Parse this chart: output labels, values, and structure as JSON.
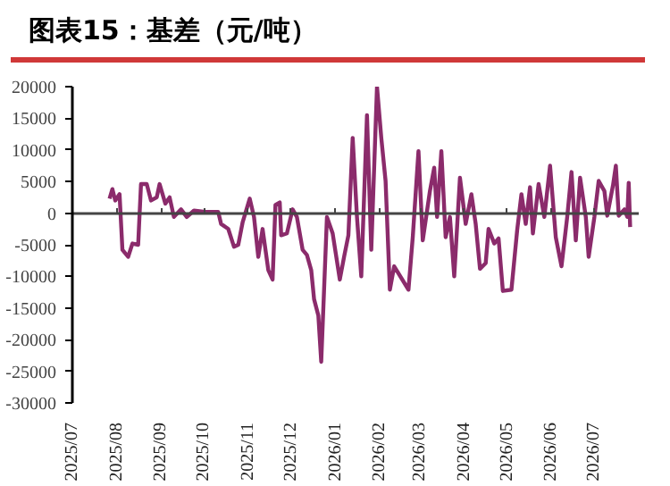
{
  "chart_data": {
    "type": "line",
    "title": "图表15：基差（元/吨）",
    "x": [
      "2025-07-27",
      "2025-07-29",
      "2025-07-31",
      "2025-08-03",
      "2025-08-05",
      "2025-08-09",
      "2025-08-12",
      "2025-08-16",
      "2025-08-18",
      "2025-08-22",
      "2025-08-25",
      "2025-08-29",
      "2025-08-31",
      "2025-09-04",
      "2025-09-07",
      "2025-09-10",
      "2025-09-15",
      "2025-09-19",
      "2025-09-24",
      "2025-10-02",
      "2025-10-11",
      "2025-10-13",
      "2025-10-18",
      "2025-10-22",
      "2025-10-25",
      "2025-10-28",
      "2025-11-02",
      "2025-11-05",
      "2025-11-08",
      "2025-11-11",
      "2025-11-15",
      "2025-11-18",
      "2025-11-20",
      "2025-11-23",
      "2025-11-24",
      "2025-11-28",
      "2025-12-02",
      "2025-12-05",
      "2025-12-09",
      "2025-12-12",
      "2025-12-15",
      "2025-12-17",
      "2025-12-20",
      "2025-12-22",
      "2025-12-26",
      "2025-12-30",
      "2026-01-04",
      "2026-01-07",
      "2026-01-10",
      "2026-01-13",
      "2026-01-16",
      "2026-01-19",
      "2026-01-23",
      "2026-01-26",
      "2026-01-30",
      "2026-02-02",
      "2026-02-05",
      "2026-02-08",
      "2026-02-11",
      "2026-02-21",
      "2026-02-24",
      "2026-02-28",
      "2026-03-03",
      "2026-03-08",
      "2026-03-11",
      "2026-03-13",
      "2026-03-16",
      "2026-03-19",
      "2026-03-22",
      "2026-03-25",
      "2026-03-29",
      "2026-04-02",
      "2026-04-06",
      "2026-04-09",
      "2026-04-12",
      "2026-04-16",
      "2026-04-18",
      "2026-04-22",
      "2026-04-25",
      "2026-04-28",
      "2026-05-04",
      "2026-05-08",
      "2026-05-11",
      "2026-05-14",
      "2026-05-17",
      "2026-05-19",
      "2026-05-23",
      "2026-05-27",
      "2026-05-31",
      "2026-06-04",
      "2026-06-08",
      "2026-06-12",
      "2026-06-15",
      "2026-06-18",
      "2026-06-21",
      "2026-06-25",
      "2026-06-27",
      "2026-07-01",
      "2026-07-04",
      "2026-07-08",
      "2026-07-10",
      "2026-07-14",
      "2026-07-16",
      "2026-07-18",
      "2026-07-22",
      "2026-07-24",
      "2026-07-25",
      "2026-07-26"
    ],
    "series": [
      {
        "color": "#8b2b6b",
        "values": [
          2300,
          3800,
          2000,
          3000,
          -5800,
          -6900,
          -4800,
          -5000,
          4600,
          4600,
          2000,
          2500,
          4600,
          1500,
          2500,
          -600,
          600,
          -600,
          400,
          200,
          200,
          -1700,
          -2500,
          -5300,
          -5000,
          -1500,
          2300,
          -600,
          -6900,
          -2500,
          -9000,
          -10500,
          1300,
          1700,
          -3500,
          -3200,
          600,
          -600,
          -5800,
          -6600,
          -9000,
          -13600,
          -16200,
          -23500,
          -600,
          -3200,
          -10500,
          -6900,
          -3500,
          11900,
          -600,
          -10000,
          15500,
          -5800,
          20000,
          11900,
          5100,
          -12100,
          -8400,
          -12100,
          -3800,
          9800,
          -4300,
          3500,
          7200,
          -600,
          9800,
          -3800,
          -600,
          -10000,
          5600,
          -1700,
          3000,
          -1700,
          -8800,
          -7900,
          -2500,
          -4800,
          -4000,
          -12300,
          -12100,
          -2700,
          3000,
          -1700,
          4100,
          -3200,
          4600,
          -600,
          7500,
          -3800,
          -8400,
          -600,
          6500,
          -4300,
          5600,
          -600,
          -6900,
          -600,
          5100,
          3500,
          -400,
          4400,
          7500,
          -400,
          600,
          -600,
          4800,
          -2200
        ]
      }
    ],
    "xlim": [
      "2025-07-01",
      "2026-08-01"
    ],
    "xticks": [
      {
        "value": "2025-07-01",
        "label": "2025/07"
      },
      {
        "value": "2025-08-01",
        "label": "2025/08"
      },
      {
        "value": "2025-09-01",
        "label": "2025/09"
      },
      {
        "value": "2025-10-01",
        "label": "2025/10"
      },
      {
        "value": "2025-11-01",
        "label": "2025/11"
      },
      {
        "value": "2025-12-01",
        "label": "2025/12"
      },
      {
        "value": "2026-01-01",
        "label": "2026/01"
      },
      {
        "value": "2026-02-01",
        "label": "2026/02"
      },
      {
        "value": "2026-03-01",
        "label": "2026/03"
      },
      {
        "value": "2026-04-01",
        "label": "2026/04"
      },
      {
        "value": "2026-05-01",
        "label": "2026/05"
      },
      {
        "value": "2026-06-01",
        "label": "2026/06"
      },
      {
        "value": "2026-07-01",
        "label": "2026/07"
      }
    ],
    "ylim": [
      -30000,
      20000
    ],
    "yticks": [
      -30000,
      -25000,
      -20000,
      -15000,
      -10000,
      -5000,
      0,
      5000,
      10000,
      15000,
      20000
    ],
    "ref_lines": [
      {
        "axis": "y",
        "value": 0,
        "color": "#444444"
      }
    ],
    "grid": false,
    "line_style": "solid",
    "marker": "none"
  }
}
